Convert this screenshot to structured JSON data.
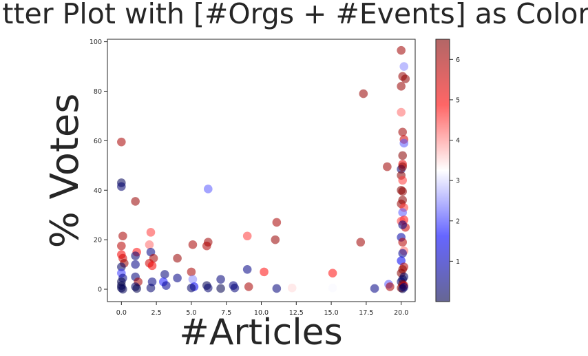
{
  "chart_data": {
    "type": "scatter",
    "title": "Scatter Plot with [#Orgs + #Events] as Colorbar",
    "xlabel": "#Articles",
    "ylabel": "% Votes",
    "xlim": [
      -1,
      21
    ],
    "ylim": [
      -5,
      101
    ],
    "xticks": [
      "0.0",
      "2.5",
      "5.0",
      "7.5",
      "10.0",
      "12.5",
      "15.0",
      "17.5",
      "20.0"
    ],
    "yticks": [
      "0",
      "20",
      "40",
      "60",
      "80",
      "100"
    ],
    "colorbar": {
      "colormap": "seismic",
      "range": [
        0,
        6.5
      ],
      "ticks": [
        "1",
        "2",
        "3",
        "4",
        "5",
        "6"
      ]
    },
    "grid": false,
    "point_alpha": 0.55,
    "points": [
      {
        "x": 0,
        "y": 59.5,
        "c": 6
      },
      {
        "x": 0,
        "y": 43,
        "c": 0.1
      },
      {
        "x": 0,
        "y": 41.5,
        "c": 0.3
      },
      {
        "x": 0.1,
        "y": 21.5,
        "c": 6
      },
      {
        "x": 0,
        "y": 17.5,
        "c": 5.8
      },
      {
        "x": 0,
        "y": 14,
        "c": 5
      },
      {
        "x": 0.1,
        "y": 12.5,
        "c": 5.5
      },
      {
        "x": 0.2,
        "y": 10.5,
        "c": 6.2
      },
      {
        "x": 0,
        "y": 9,
        "c": 0.2
      },
      {
        "x": 0,
        "y": 6.5,
        "c": 2
      },
      {
        "x": 0.1,
        "y": 4.5,
        "c": 0.5
      },
      {
        "x": 0,
        "y": 3,
        "c": 0
      },
      {
        "x": 0,
        "y": 1.5,
        "c": 0
      },
      {
        "x": 0,
        "y": 0.5,
        "c": 0
      },
      {
        "x": 0.1,
        "y": 0,
        "c": 0.1
      },
      {
        "x": 1,
        "y": 35.5,
        "c": 6.2
      },
      {
        "x": 1.1,
        "y": 15,
        "c": 4.8
      },
      {
        "x": 1,
        "y": 13.5,
        "c": 0.3
      },
      {
        "x": 1,
        "y": 10,
        "c": 0.5
      },
      {
        "x": 1,
        "y": 5,
        "c": 0.4
      },
      {
        "x": 1.2,
        "y": 3,
        "c": 6
      },
      {
        "x": 1,
        "y": 1,
        "c": 0.2
      },
      {
        "x": 1.1,
        "y": 0.3,
        "c": 0
      },
      {
        "x": 2.1,
        "y": 23,
        "c": 4.5
      },
      {
        "x": 2,
        "y": 18,
        "c": 4.2
      },
      {
        "x": 2.1,
        "y": 15,
        "c": 0.5
      },
      {
        "x": 2.3,
        "y": 12.5,
        "c": 6
      },
      {
        "x": 2,
        "y": 10.5,
        "c": 5.5
      },
      {
        "x": 2.2,
        "y": 9.5,
        "c": 5
      },
      {
        "x": 2.2,
        "y": 3,
        "c": 0.5
      },
      {
        "x": 2.1,
        "y": 0.5,
        "c": 0.3
      },
      {
        "x": 3.1,
        "y": 6,
        "c": 0.4
      },
      {
        "x": 3,
        "y": 3,
        "c": 1.8
      },
      {
        "x": 3.2,
        "y": 1.5,
        "c": 0.6
      },
      {
        "x": 4,
        "y": 12.5,
        "c": 6.2
      },
      {
        "x": 4,
        "y": 4.5,
        "c": 0.5
      },
      {
        "x": 5.1,
        "y": 18,
        "c": 6
      },
      {
        "x": 5,
        "y": 7,
        "c": 6
      },
      {
        "x": 5.1,
        "y": 4,
        "c": 2.5
      },
      {
        "x": 5.2,
        "y": 1,
        "c": 1.5
      },
      {
        "x": 5,
        "y": 0.5,
        "c": 0.2
      },
      {
        "x": 6.2,
        "y": 40.5,
        "c": 2.2
      },
      {
        "x": 6.2,
        "y": 19,
        "c": 6.1
      },
      {
        "x": 6.1,
        "y": 17.5,
        "c": 5.9
      },
      {
        "x": 6.1,
        "y": 1.5,
        "c": 0.1
      },
      {
        "x": 6.2,
        "y": 0.5,
        "c": 0.3
      },
      {
        "x": 7.1,
        "y": 4,
        "c": 0.4
      },
      {
        "x": 7.1,
        "y": 0.3,
        "c": 0
      },
      {
        "x": 8,
        "y": 1.5,
        "c": 0.5
      },
      {
        "x": 8.1,
        "y": 0.5,
        "c": 0.4
      },
      {
        "x": 9,
        "y": 21.5,
        "c": 4.5
      },
      {
        "x": 9,
        "y": 8,
        "c": 0.5
      },
      {
        "x": 9.1,
        "y": 1,
        "c": 6
      },
      {
        "x": 10.2,
        "y": 7,
        "c": 4.8
      },
      {
        "x": 11.1,
        "y": 27,
        "c": 6
      },
      {
        "x": 11,
        "y": 20,
        "c": 6.2
      },
      {
        "x": 11.1,
        "y": 0.3,
        "c": 0.4
      },
      {
        "x": 12.2,
        "y": 0.5,
        "c": 3.5
      },
      {
        "x": 15.1,
        "y": 6.5,
        "c": 4.8
      },
      {
        "x": 15.1,
        "y": 0.5,
        "c": 3.2
      },
      {
        "x": 17.3,
        "y": 79,
        "c": 6.2
      },
      {
        "x": 17.1,
        "y": 19,
        "c": 6.1
      },
      {
        "x": 18.1,
        "y": 0.3,
        "c": 0.5
      },
      {
        "x": 19,
        "y": 49.5,
        "c": 6.1
      },
      {
        "x": 19.1,
        "y": 2,
        "c": 2.2
      },
      {
        "x": 19.2,
        "y": 1,
        "c": 6
      },
      {
        "x": 20,
        "y": 96.5,
        "c": 6.1
      },
      {
        "x": 20.2,
        "y": 90,
        "c": 2.5
      },
      {
        "x": 20.1,
        "y": 86,
        "c": 6.2
      },
      {
        "x": 20.3,
        "y": 85,
        "c": 6.3
      },
      {
        "x": 20,
        "y": 82,
        "c": 6.2
      },
      {
        "x": 20,
        "y": 71.5,
        "c": 4.2
      },
      {
        "x": 20.1,
        "y": 63.5,
        "c": 6.1
      },
      {
        "x": 20.2,
        "y": 60.5,
        "c": 5.5
      },
      {
        "x": 20.2,
        "y": 59,
        "c": 2.2
      },
      {
        "x": 20.1,
        "y": 54,
        "c": 6.4
      },
      {
        "x": 20.1,
        "y": 50.5,
        "c": 5.2
      },
      {
        "x": 20,
        "y": 48.5,
        "c": 0.3
      },
      {
        "x": 20.1,
        "y": 49.5,
        "c": 6.3
      },
      {
        "x": 20,
        "y": 46,
        "c": 6.4
      },
      {
        "x": 20.1,
        "y": 44,
        "c": 4.5
      },
      {
        "x": 20,
        "y": 40,
        "c": 6.5
      },
      {
        "x": 20.1,
        "y": 39.5,
        "c": 6.3
      },
      {
        "x": 20.1,
        "y": 36,
        "c": 6.4
      },
      {
        "x": 20,
        "y": 34.5,
        "c": 6.2
      },
      {
        "x": 20.2,
        "y": 33,
        "c": 4.5
      },
      {
        "x": 20.1,
        "y": 31,
        "c": 2.2
      },
      {
        "x": 20.2,
        "y": 28,
        "c": 4.8
      },
      {
        "x": 20,
        "y": 27.5,
        "c": 4.5
      },
      {
        "x": 20.3,
        "y": 25,
        "c": 5.5
      },
      {
        "x": 20.1,
        "y": 26,
        "c": 0.5
      },
      {
        "x": 20,
        "y": 21,
        "c": 0.8
      },
      {
        "x": 20.1,
        "y": 19,
        "c": 5.8
      },
      {
        "x": 20.2,
        "y": 15.5,
        "c": 4.2
      },
      {
        "x": 20.1,
        "y": 14.5,
        "c": 0.6
      },
      {
        "x": 20,
        "y": 11.5,
        "c": 1.5
      },
      {
        "x": 20.2,
        "y": 9,
        "c": 5.8
      },
      {
        "x": 20.1,
        "y": 8,
        "c": 6.3
      },
      {
        "x": 20,
        "y": 6.5,
        "c": 6.4
      },
      {
        "x": 20.2,
        "y": 5,
        "c": 0.2
      },
      {
        "x": 20.1,
        "y": 4,
        "c": 0.1
      },
      {
        "x": 20,
        "y": 3,
        "c": 0.3
      },
      {
        "x": 20.1,
        "y": 2,
        "c": 6.4
      },
      {
        "x": 20.2,
        "y": 1.5,
        "c": 5.5
      },
      {
        "x": 20,
        "y": 0.5,
        "c": 6.3
      },
      {
        "x": 20.1,
        "y": 0.2,
        "c": 0
      },
      {
        "x": 20.2,
        "y": 0.8,
        "c": 0.4
      }
    ]
  }
}
